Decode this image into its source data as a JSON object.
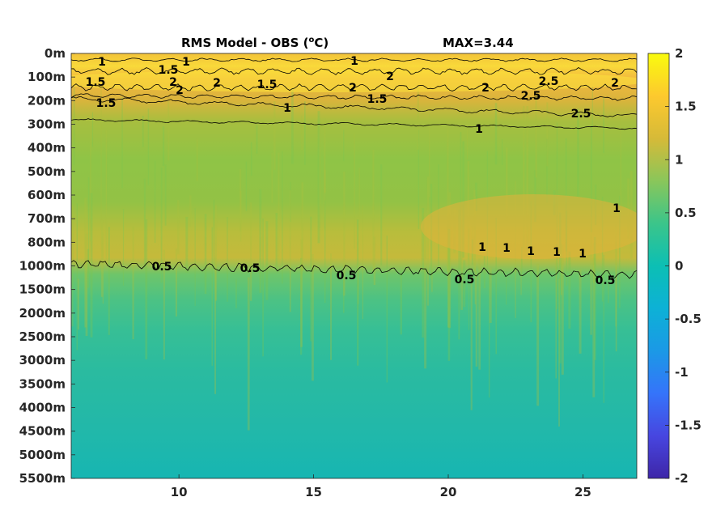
{
  "chart_data": {
    "type": "heatmap",
    "title": "RMS Model - OBS (",
    "title_unit": "o",
    "title_suffix": "C)",
    "max_label": "MAX=3.44",
    "x_ticks": [
      10,
      15,
      20,
      25
    ],
    "xlim": [
      6,
      27
    ],
    "y_ticks": [
      "0m",
      "100m",
      "200m",
      "300m",
      "400m",
      "500m",
      "600m",
      "700m",
      "800m",
      "1000m",
      "1500m",
      "2000m",
      "2500m",
      "3000m",
      "3500m",
      "4000m",
      "4500m",
      "5000m",
      "5500m"
    ],
    "colorbar": {
      "clim": [
        -2,
        2
      ],
      "ticks": [
        "2",
        "1.5",
        "1",
        "0.5",
        "0",
        "-0.5",
        "-1",
        "-1.5",
        "-2"
      ]
    },
    "depth_profile": [
      {
        "depth": "0m",
        "value": 1.5
      },
      {
        "depth": "100m",
        "value": 2.1
      },
      {
        "depth": "200m",
        "value": 1.3
      },
      {
        "depth": "300m",
        "value": 0.9
      },
      {
        "depth": "400m",
        "value": 0.8
      },
      {
        "depth": "500m",
        "value": 0.75
      },
      {
        "depth": "600m",
        "value": 0.85
      },
      {
        "depth": "700m",
        "value": 0.95
      },
      {
        "depth": "800m",
        "value": 0.9
      },
      {
        "depth": "1000m",
        "value": 0.55
      },
      {
        "depth": "1500m",
        "value": 0.4
      },
      {
        "depth": "2000m",
        "value": 0.3
      },
      {
        "depth": "2500m",
        "value": 0.25
      },
      {
        "depth": "3000m",
        "value": 0.22
      },
      {
        "depth": "5500m",
        "value": 0.18
      }
    ],
    "contour_labels": [
      "1",
      "1",
      "1",
      "1.5",
      "1.5",
      "2",
      "2",
      "1.5",
      "2",
      "2",
      "2",
      "1.5",
      "2",
      "2.5",
      "2.5",
      "2",
      "2.5",
      "1.5",
      "1",
      "1",
      "1",
      "1",
      "1",
      "1",
      "1",
      "1",
      "0.5",
      "0.5",
      "0.5",
      "0.5",
      "0.5"
    ]
  }
}
